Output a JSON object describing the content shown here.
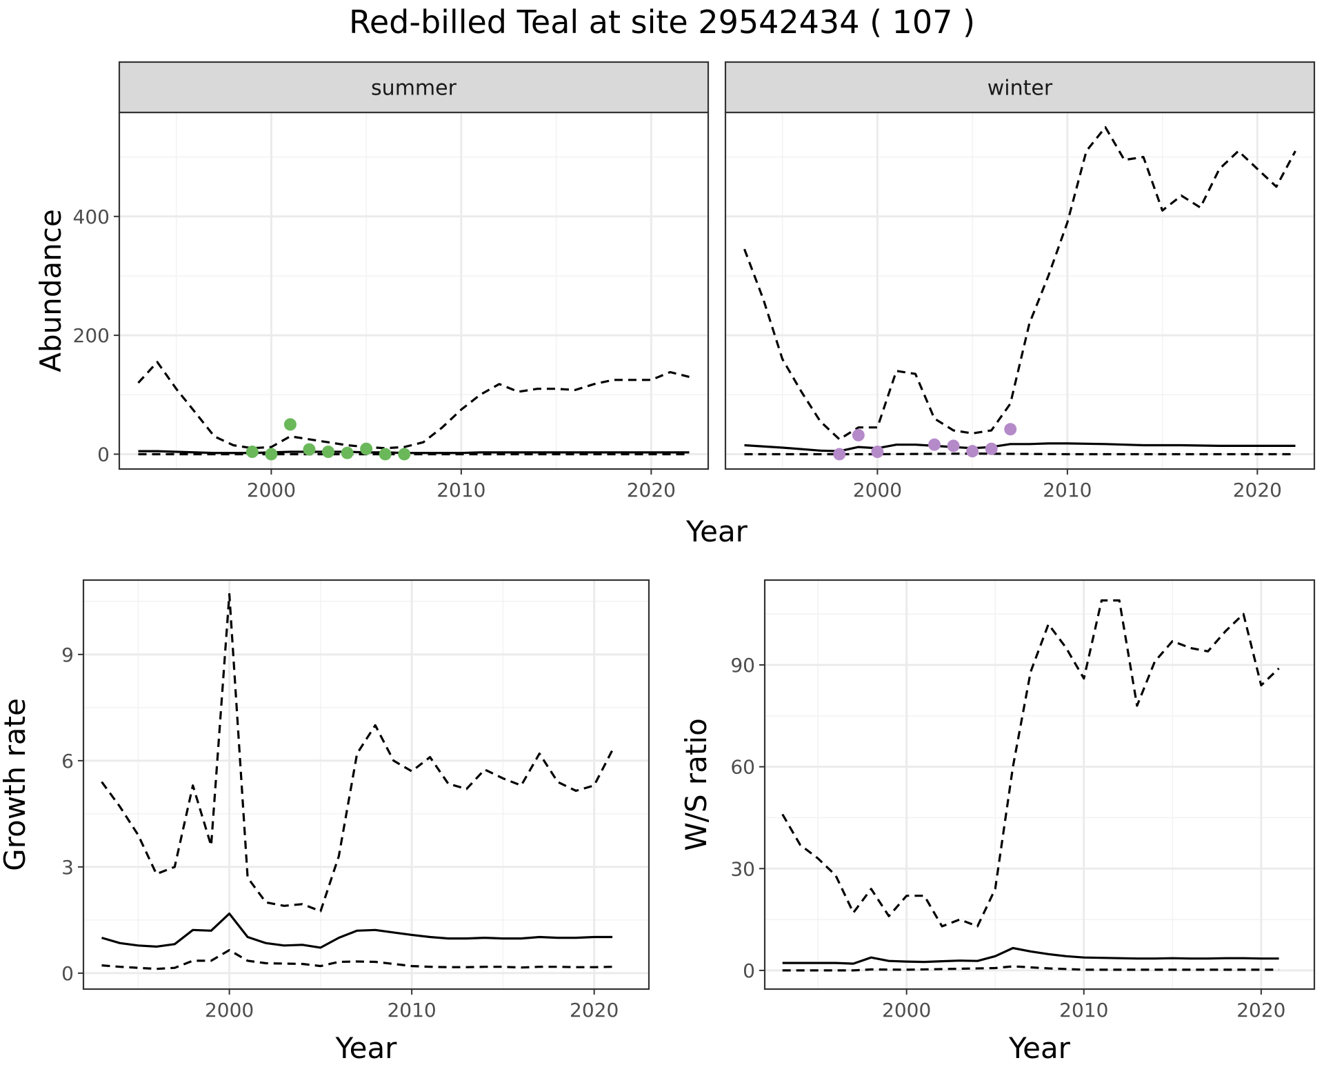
{
  "title": "Red-billed Teal at site 29542434 ( 107 )",
  "colors": {
    "summer_points": "#6ab85a",
    "winter_points": "#b58ac9",
    "lines": "#000000",
    "strip_bg": "#d9d9d9",
    "grid": "#ebebeb"
  },
  "chart_data": [
    {
      "type": "line",
      "panel": "summer",
      "strip": "summer",
      "xlabel": "Year",
      "ylabel": "Abundance",
      "xlim": [
        1992,
        2023
      ],
      "ylim": [
        -25,
        575
      ],
      "x_ticks": [
        2000,
        2010,
        2020
      ],
      "y_ticks": [
        0,
        200,
        400
      ],
      "grid": true,
      "series": [
        {
          "style": "solid",
          "x": [
            1993,
            1994,
            1995,
            1996,
            1997,
            1998,
            1999,
            2000,
            2001,
            2002,
            2003,
            2004,
            2005,
            2006,
            2007,
            2008,
            2009,
            2010,
            2011,
            2012,
            2013,
            2014,
            2015,
            2016,
            2017,
            2018,
            2019,
            2020,
            2021,
            2022
          ],
          "values": [
            5,
            5,
            4,
            3,
            2,
            2,
            2,
            3,
            4,
            4,
            4,
            4,
            3,
            3,
            2,
            2,
            2,
            2,
            3,
            3,
            3,
            3,
            3,
            3,
            3,
            3,
            3,
            3,
            3,
            3
          ]
        },
        {
          "style": "dashed",
          "x": [
            1993,
            1994,
            1995,
            1996,
            1997,
            1998,
            1999,
            2000,
            2001,
            2002,
            2003,
            2004,
            2005,
            2006,
            2007,
            2008,
            2009,
            2010,
            2011,
            2012,
            2013,
            2014,
            2015,
            2016,
            2017,
            2018,
            2019,
            2020,
            2021,
            2022
          ],
          "values": [
            120,
            155,
            110,
            70,
            30,
            15,
            10,
            12,
            30,
            25,
            20,
            15,
            12,
            10,
            12,
            20,
            45,
            75,
            100,
            118,
            105,
            110,
            110,
            108,
            118,
            125,
            125,
            125,
            138,
            130
          ]
        },
        {
          "style": "dashed",
          "x": [
            1993,
            2022
          ],
          "values": [
            0,
            0
          ]
        }
      ],
      "points": {
        "x": [
          1999,
          2000,
          2001,
          2002,
          2003,
          2004,
          2005,
          2006,
          2007
        ],
        "values": [
          4,
          0,
          50,
          8,
          4,
          2,
          9,
          0,
          0
        ]
      }
    },
    {
      "type": "line",
      "panel": "winter",
      "strip": "winter",
      "xlim": [
        1992,
        2023
      ],
      "ylim": [
        -25,
        575
      ],
      "x_ticks": [
        2000,
        2010,
        2020
      ],
      "grid": true,
      "series": [
        {
          "style": "solid",
          "x": [
            1993,
            1995,
            1997,
            1998,
            1999,
            2000,
            2001,
            2002,
            2003,
            2004,
            2005,
            2006,
            2007,
            2008,
            2009,
            2010,
            2012,
            2014,
            2016,
            2018,
            2020,
            2022
          ],
          "values": [
            15,
            11,
            6,
            5,
            12,
            10,
            16,
            16,
            14,
            12,
            10,
            12,
            17,
            17,
            18,
            18,
            17,
            15,
            15,
            14,
            14,
            14
          ]
        },
        {
          "style": "dashed",
          "x": [
            1993,
            1994,
            1995,
            1996,
            1997,
            1998,
            1999,
            2000,
            2001,
            2002,
            2003,
            2004,
            2005,
            2006,
            2007,
            2008,
            2009,
            2010,
            2011,
            2012,
            2013,
            2014,
            2015,
            2016,
            2017,
            2018,
            2019,
            2020,
            2021,
            2022
          ],
          "values": [
            345,
            260,
            160,
            105,
            55,
            25,
            45,
            45,
            140,
            135,
            60,
            40,
            35,
            40,
            85,
            220,
            300,
            390,
            510,
            550,
            495,
            500,
            410,
            435,
            415,
            480,
            510,
            480,
            450,
            510
          ]
        },
        {
          "style": "dashed",
          "x": [
            1993,
            2000,
            2005,
            2010,
            2022
          ],
          "values": [
            0,
            0,
            1,
            0,
            0
          ]
        }
      ],
      "points": {
        "x": [
          1998,
          1999,
          2000,
          2003,
          2004,
          2005,
          2006,
          2007
        ],
        "values": [
          0,
          32,
          4,
          16,
          14,
          5,
          9,
          42
        ]
      }
    },
    {
      "type": "line",
      "panel": "growth",
      "xlabel": "Year",
      "ylabel": "Growth rate",
      "xlim": [
        1992,
        2023
      ],
      "ylim": [
        -0.45,
        11.1
      ],
      "x_ticks": [
        2000,
        2010,
        2020
      ],
      "y_ticks": [
        0,
        3,
        6,
        9
      ],
      "grid": true,
      "series": [
        {
          "style": "solid",
          "x": [
            1993,
            1994,
            1995,
            1996,
            1997,
            1998,
            1999,
            2000,
            2001,
            2002,
            2003,
            2004,
            2005,
            2006,
            2007,
            2008,
            2009,
            2010,
            2011,
            2012,
            2013,
            2014,
            2015,
            2016,
            2017,
            2018,
            2019,
            2020,
            2021
          ],
          "values": [
            1.0,
            0.85,
            0.78,
            0.75,
            0.82,
            1.22,
            1.2,
            1.68,
            1.02,
            0.85,
            0.78,
            0.8,
            0.72,
            1.0,
            1.2,
            1.22,
            1.15,
            1.08,
            1.02,
            0.98,
            0.98,
            1.0,
            0.98,
            0.98,
            1.02,
            1.0,
            1.0,
            1.02,
            1.02
          ]
        },
        {
          "style": "dashed",
          "x": [
            1993,
            1994,
            1995,
            1996,
            1997,
            1998,
            1999,
            2000,
            2001,
            2002,
            2003,
            2004,
            2005,
            2006,
            2007,
            2008,
            2009,
            2010,
            2011,
            2012,
            2013,
            2014,
            2015,
            2016,
            2017,
            2018,
            2019,
            2020,
            2021
          ],
          "values": [
            5.4,
            4.7,
            3.9,
            2.8,
            3.0,
            5.3,
            3.6,
            10.7,
            2.7,
            2.0,
            1.9,
            1.95,
            1.75,
            3.3,
            6.2,
            7.0,
            6.0,
            5.7,
            6.1,
            5.35,
            5.2,
            5.75,
            5.5,
            5.3,
            6.2,
            5.4,
            5.15,
            5.3,
            6.3
          ]
        },
        {
          "style": "dashed",
          "x": [
            1993,
            1994,
            1995,
            1996,
            1997,
            1998,
            1999,
            2000,
            2001,
            2002,
            2003,
            2004,
            2005,
            2006,
            2007,
            2008,
            2009,
            2010,
            2011,
            2012,
            2013,
            2014,
            2015,
            2016,
            2017,
            2018,
            2019,
            2020,
            2021
          ],
          "values": [
            0.22,
            0.18,
            0.15,
            0.12,
            0.15,
            0.35,
            0.35,
            0.65,
            0.35,
            0.28,
            0.27,
            0.26,
            0.2,
            0.32,
            0.33,
            0.32,
            0.26,
            0.2,
            0.18,
            0.17,
            0.17,
            0.18,
            0.18,
            0.16,
            0.18,
            0.18,
            0.17,
            0.17,
            0.18
          ]
        }
      ]
    },
    {
      "type": "line",
      "panel": "ratio",
      "xlabel": "Year",
      "ylabel": "W/S ratio",
      "xlim": [
        1992,
        2023
      ],
      "ylim": [
        -5.5,
        115
      ],
      "x_ticks": [
        2000,
        2010,
        2020
      ],
      "y_ticks": [
        0,
        30,
        60,
        90
      ],
      "grid": true,
      "series": [
        {
          "style": "solid",
          "x": [
            1993,
            1994,
            1995,
            1996,
            1997,
            1998,
            1999,
            2000,
            2001,
            2002,
            2003,
            2004,
            2005,
            2006,
            2007,
            2008,
            2009,
            2010,
            2011,
            2012,
            2013,
            2014,
            2015,
            2016,
            2017,
            2018,
            2019,
            2020,
            2021
          ],
          "values": [
            2.2,
            2.2,
            2.2,
            2.2,
            2.0,
            3.8,
            2.8,
            2.6,
            2.5,
            2.7,
            2.9,
            2.8,
            4.2,
            6.6,
            5.6,
            4.8,
            4.2,
            3.8,
            3.7,
            3.6,
            3.5,
            3.5,
            3.6,
            3.5,
            3.5,
            3.6,
            3.6,
            3.5,
            3.5
          ]
        },
        {
          "style": "dashed",
          "x": [
            1993,
            1994,
            1995,
            1996,
            1997,
            1998,
            1999,
            2000,
            2001,
            2002,
            2003,
            2004,
            2005,
            2006,
            2007,
            2008,
            2009,
            2010,
            2011,
            2012,
            2013,
            2014,
            2015,
            2016,
            2017,
            2018,
            2019,
            2020,
            2021
          ],
          "values": [
            46,
            37,
            33,
            28,
            17,
            24,
            16,
            22,
            22,
            13,
            15,
            13,
            24,
            60,
            88,
            102,
            95,
            86,
            109,
            109,
            78,
            91,
            97,
            95,
            94,
            100,
            105,
            84,
            89
          ]
        },
        {
          "style": "dashed",
          "x": [
            1993,
            1997,
            1998,
            2000,
            2003,
            2005,
            2006,
            2008,
            2010,
            2021
          ],
          "values": [
            0,
            0,
            0.3,
            0.2,
            0.5,
            0.7,
            1.2,
            0.6,
            0.2,
            0.2
          ]
        }
      ]
    }
  ]
}
